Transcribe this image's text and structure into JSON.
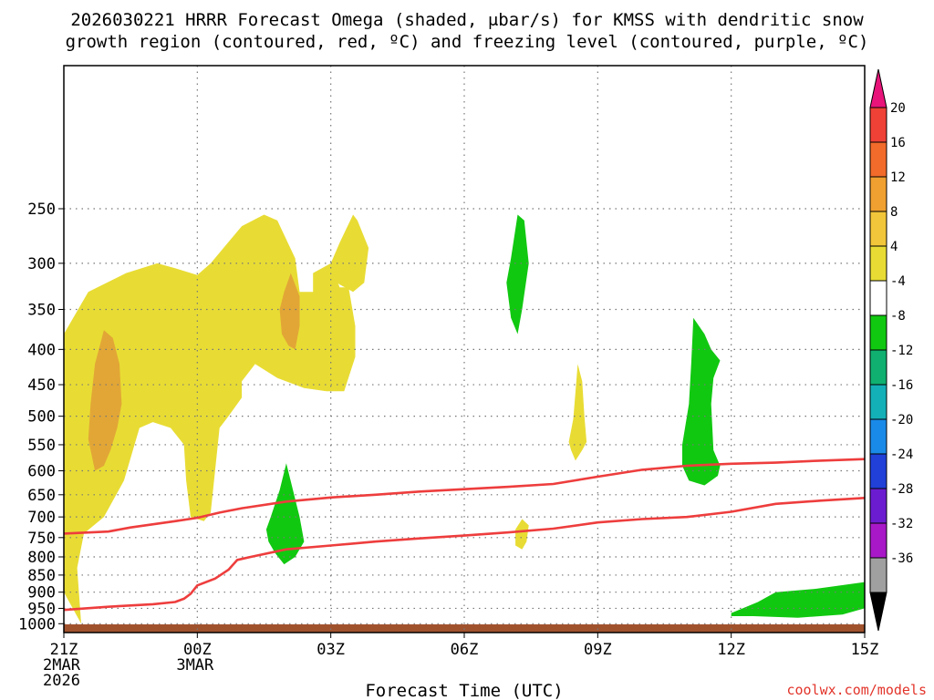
{
  "chart_data": {
    "type": "time-height",
    "title_lines": [
      "2026030221 HRRR Forecast Omega (shaded, μbar/s) for KMSS with dendritic snow",
      "growth region (contoured, red, ºC) and freezing level (contoured, purple, ºC)"
    ],
    "xlabel": "Forecast Time (UTC)",
    "credit": "coolwx.com/models",
    "x_range_hours": [
      0,
      18
    ],
    "y_range_hpa": [
      1030,
      155
    ],
    "y_ticks": [
      250,
      300,
      350,
      400,
      450,
      500,
      550,
      600,
      650,
      700,
      750,
      800,
      850,
      900,
      950,
      1000
    ],
    "x_ticks": [
      {
        "hour": 0,
        "lines": [
          "21Z",
          "2MAR",
          "2026"
        ]
      },
      {
        "hour": 3,
        "lines": [
          "00Z",
          "3MAR"
        ]
      },
      {
        "hour": 6,
        "lines": [
          "03Z"
        ]
      },
      {
        "hour": 9,
        "lines": [
          "06Z"
        ]
      },
      {
        "hour": 12,
        "lines": [
          "09Z"
        ]
      },
      {
        "hour": 15,
        "lines": [
          "12Z"
        ]
      },
      {
        "hour": 18,
        "lines": [
          "15Z"
        ]
      }
    ],
    "colorbar": {
      "labels": [
        "20",
        "16",
        "12",
        "8",
        "4",
        "-4",
        "-8",
        "-12",
        "-16",
        "-20",
        "-24",
        "-28",
        "-32",
        "-36"
      ],
      "bins": [
        {
          "color": "#e8147a"
        },
        {
          "color": "#ef4136"
        },
        {
          "color": "#f26b2a"
        },
        {
          "color": "#f0a030"
        },
        {
          "color": "#f2c63a"
        },
        {
          "color": "#e8dc34"
        },
        {
          "color": "#ffffff"
        },
        {
          "color": "#11c811"
        },
        {
          "color": "#10b070"
        },
        {
          "color": "#14b0b8"
        },
        {
          "color": "#1a8ae8"
        },
        {
          "color": "#2040d8"
        },
        {
          "color": "#6c1cd0"
        },
        {
          "color": "#a818c8"
        },
        {
          "color": "#a0a0a0"
        },
        {
          "color": "#000000"
        }
      ]
    },
    "omega_regions": [
      {
        "name": "omega-region-yellow-west",
        "color": "#e8dc34",
        "points": [
          [
            0.39,
            1000
          ],
          [
            0.0,
            900
          ],
          [
            -0.6,
            780
          ],
          [
            -0.3,
            560
          ],
          [
            0.0,
            380
          ],
          [
            0.55,
            330
          ],
          [
            1.4,
            310
          ],
          [
            2.1,
            300
          ],
          [
            2.5,
            305
          ],
          [
            3.0,
            312
          ],
          [
            3.3,
            300
          ],
          [
            4.0,
            265
          ],
          [
            4.5,
            255
          ],
          [
            4.8,
            260
          ],
          [
            5.2,
            295
          ],
          [
            5.3,
            330
          ],
          [
            5.6,
            330
          ],
          [
            5.6,
            310
          ],
          [
            6.0,
            300
          ],
          [
            6.2,
            325
          ],
          [
            6.4,
            325
          ],
          [
            6.55,
            370
          ],
          [
            6.55,
            410
          ],
          [
            6.3,
            460
          ],
          [
            5.9,
            460
          ],
          [
            5.4,
            455
          ],
          [
            4.8,
            440
          ],
          [
            4.3,
            420
          ],
          [
            4.0,
            445
          ],
          [
            4.0,
            470
          ],
          [
            3.7,
            500
          ],
          [
            3.5,
            520
          ],
          [
            3.4,
            600
          ],
          [
            3.3,
            690
          ],
          [
            3.15,
            710
          ],
          [
            2.85,
            700
          ],
          [
            2.75,
            620
          ],
          [
            2.7,
            550
          ],
          [
            2.4,
            520
          ],
          [
            2.0,
            510
          ],
          [
            1.7,
            520
          ],
          [
            1.35,
            620
          ],
          [
            0.9,
            700
          ],
          [
            0.45,
            740
          ],
          [
            0.3,
            830
          ]
        ]
      },
      {
        "name": "omega-region-orange-west",
        "color": "#e2a636",
        "points": [
          [
            0.55,
            540
          ],
          [
            0.6,
            480
          ],
          [
            0.7,
            420
          ],
          [
            0.9,
            375
          ],
          [
            1.1,
            385
          ],
          [
            1.25,
            420
          ],
          [
            1.3,
            480
          ],
          [
            1.2,
            520
          ],
          [
            1.05,
            560
          ],
          [
            0.9,
            590
          ],
          [
            0.7,
            600
          ]
        ]
      },
      {
        "name": "omega-region-orange-center",
        "color": "#e2a636",
        "points": [
          [
            4.85,
            350
          ],
          [
            4.95,
            330
          ],
          [
            5.1,
            310
          ],
          [
            5.3,
            335
          ],
          [
            5.3,
            370
          ],
          [
            5.2,
            400
          ],
          [
            5.05,
            395
          ],
          [
            4.9,
            380
          ]
        ]
      },
      {
        "name": "omega-region-yellow-northeast",
        "color": "#e8dc34",
        "points": [
          [
            6.0,
            300
          ],
          [
            6.2,
            280
          ],
          [
            6.5,
            255
          ],
          [
            6.6,
            260
          ],
          [
            6.85,
            285
          ],
          [
            6.75,
            320
          ],
          [
            6.5,
            330
          ],
          [
            6.2,
            322
          ],
          [
            6.0,
            315
          ]
        ]
      },
      {
        "name": "omega-region-yellow-mid-east",
        "color": "#e8dc34",
        "points": [
          [
            11.35,
            545
          ],
          [
            11.45,
            505
          ],
          [
            11.55,
            420
          ],
          [
            11.65,
            445
          ],
          [
            11.7,
            500
          ],
          [
            11.75,
            545
          ],
          [
            11.65,
            560
          ],
          [
            11.5,
            580
          ],
          [
            11.4,
            560
          ]
        ]
      },
      {
        "name": "omega-region-yellow-small",
        "color": "#e8dc34",
        "points": [
          [
            10.15,
            730
          ],
          [
            10.3,
            705
          ],
          [
            10.45,
            720
          ],
          [
            10.4,
            760
          ],
          [
            10.3,
            780
          ],
          [
            10.15,
            770
          ]
        ]
      },
      {
        "name": "omega-region-green-top",
        "color": "#11c811",
        "points": [
          [
            9.95,
            320
          ],
          [
            10.05,
            295
          ],
          [
            10.2,
            255
          ],
          [
            10.35,
            260
          ],
          [
            10.45,
            300
          ],
          [
            10.3,
            350
          ],
          [
            10.2,
            380
          ],
          [
            10.05,
            360
          ]
        ]
      },
      {
        "name": "omega-region-green-left",
        "color": "#11c811",
        "points": [
          [
            4.55,
            730
          ],
          [
            4.65,
            700
          ],
          [
            4.85,
            640
          ],
          [
            5.0,
            585
          ],
          [
            5.15,
            640
          ],
          [
            5.3,
            700
          ],
          [
            5.4,
            760
          ],
          [
            5.2,
            800
          ],
          [
            4.95,
            820
          ],
          [
            4.75,
            790
          ],
          [
            4.6,
            760
          ]
        ]
      },
      {
        "name": "omega-region-green-east",
        "color": "#11c811",
        "points": [
          [
            13.9,
            590
          ],
          [
            13.9,
            550
          ],
          [
            14.05,
            480
          ],
          [
            14.1,
            420
          ],
          [
            14.15,
            360
          ],
          [
            14.4,
            380
          ],
          [
            14.55,
            400
          ],
          [
            14.75,
            415
          ],
          [
            14.6,
            440
          ],
          [
            14.55,
            480
          ],
          [
            14.6,
            560
          ],
          [
            14.75,
            590
          ],
          [
            14.7,
            610
          ],
          [
            14.4,
            630
          ],
          [
            14.05,
            620
          ]
        ]
      },
      {
        "name": "omega-region-green-surface",
        "color": "#11c811",
        "points": [
          [
            15.0,
            965
          ],
          [
            15.6,
            930
          ],
          [
            16.0,
            900
          ],
          [
            16.9,
            890
          ],
          [
            18.0,
            870
          ],
          [
            18.0,
            950
          ],
          [
            17.5,
            970
          ],
          [
            16.5,
            980
          ],
          [
            15.5,
            975
          ],
          [
            15.0,
            975
          ]
        ]
      }
    ],
    "isotherms": [
      {
        "name": "isotherm-upper",
        "color": "#ee3d3d",
        "points": [
          [
            0,
            740
          ],
          [
            1.0,
            735
          ],
          [
            1.5,
            725
          ],
          [
            2.5,
            710
          ],
          [
            3.0,
            702
          ],
          [
            3.5,
            690
          ],
          [
            4.0,
            680
          ],
          [
            5.0,
            665
          ],
          [
            6.0,
            656
          ],
          [
            7.0,
            650
          ],
          [
            8.0,
            643
          ],
          [
            9.0,
            638
          ],
          [
            10.0,
            633
          ],
          [
            11.0,
            627
          ],
          [
            12.0,
            612
          ],
          [
            13.0,
            598
          ],
          [
            14.0,
            590
          ],
          [
            15.0,
            586
          ],
          [
            16.0,
            584
          ],
          [
            17.0,
            580
          ],
          [
            18.0,
            577
          ]
        ]
      },
      {
        "name": "isotherm-lower",
        "color": "#ee3d3d",
        "points": [
          [
            0,
            955
          ],
          [
            1.0,
            945
          ],
          [
            2.0,
            937
          ],
          [
            2.5,
            930
          ],
          [
            2.7,
            920
          ],
          [
            2.85,
            905
          ],
          [
            3.0,
            880
          ],
          [
            3.4,
            860
          ],
          [
            3.7,
            835
          ],
          [
            3.9,
            808
          ],
          [
            4.2,
            800
          ],
          [
            5.0,
            780
          ],
          [
            6.0,
            770
          ],
          [
            7.0,
            760
          ],
          [
            8.0,
            752
          ],
          [
            9.0,
            745
          ],
          [
            10.0,
            737
          ],
          [
            11.0,
            728
          ],
          [
            12.0,
            713
          ],
          [
            13.0,
            705
          ],
          [
            14.0,
            700
          ],
          [
            15.0,
            688
          ],
          [
            16.0,
            670
          ],
          [
            17.0,
            663
          ],
          [
            18.0,
            657
          ]
        ]
      }
    ],
    "terrain_color": "#a0522d"
  }
}
